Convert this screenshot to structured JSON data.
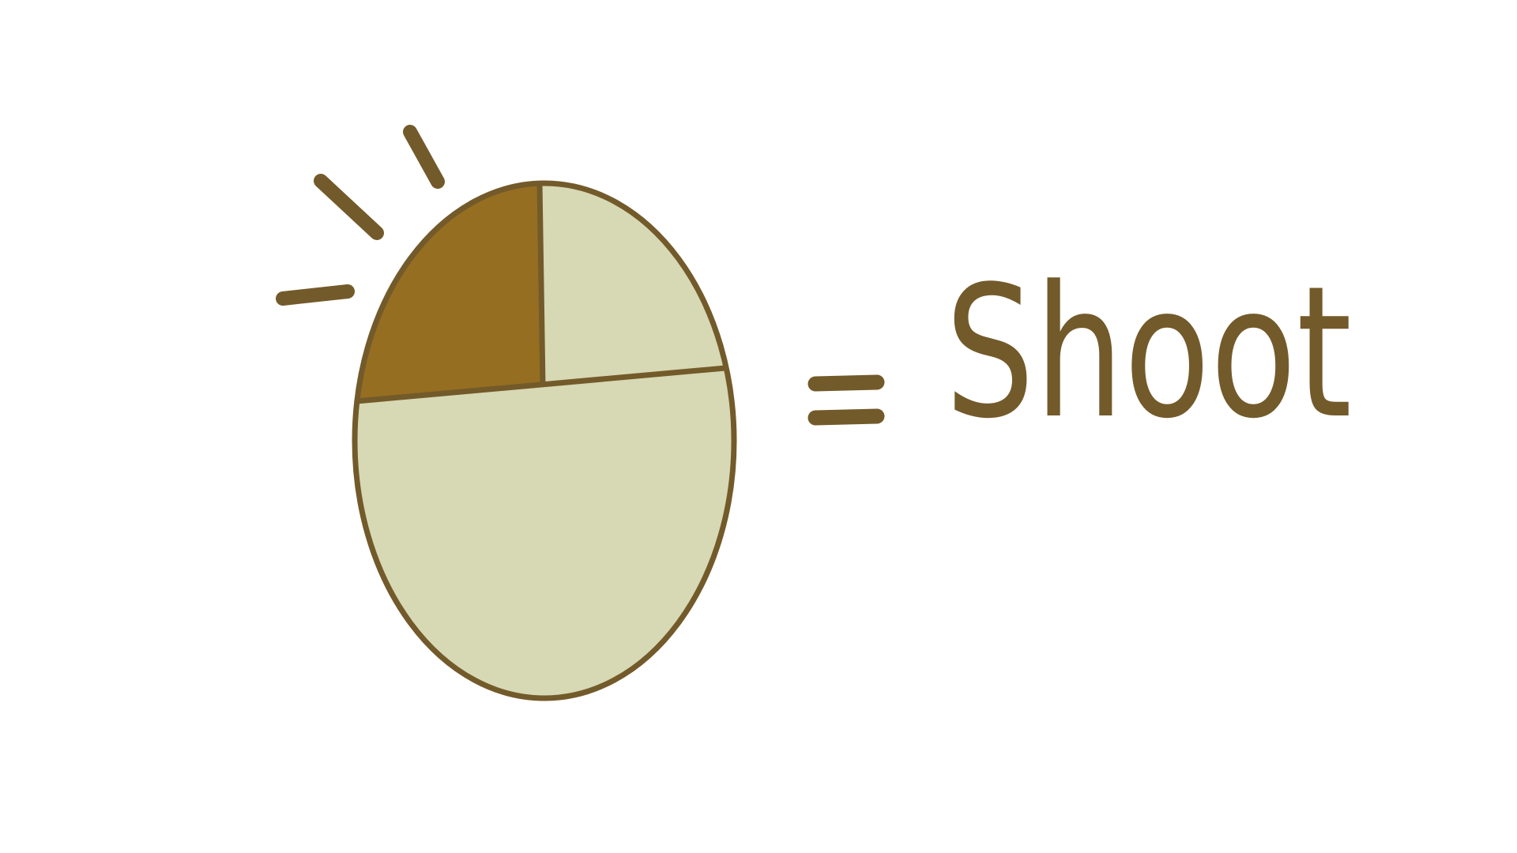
{
  "instruction": {
    "action": "Shoot"
  }
}
